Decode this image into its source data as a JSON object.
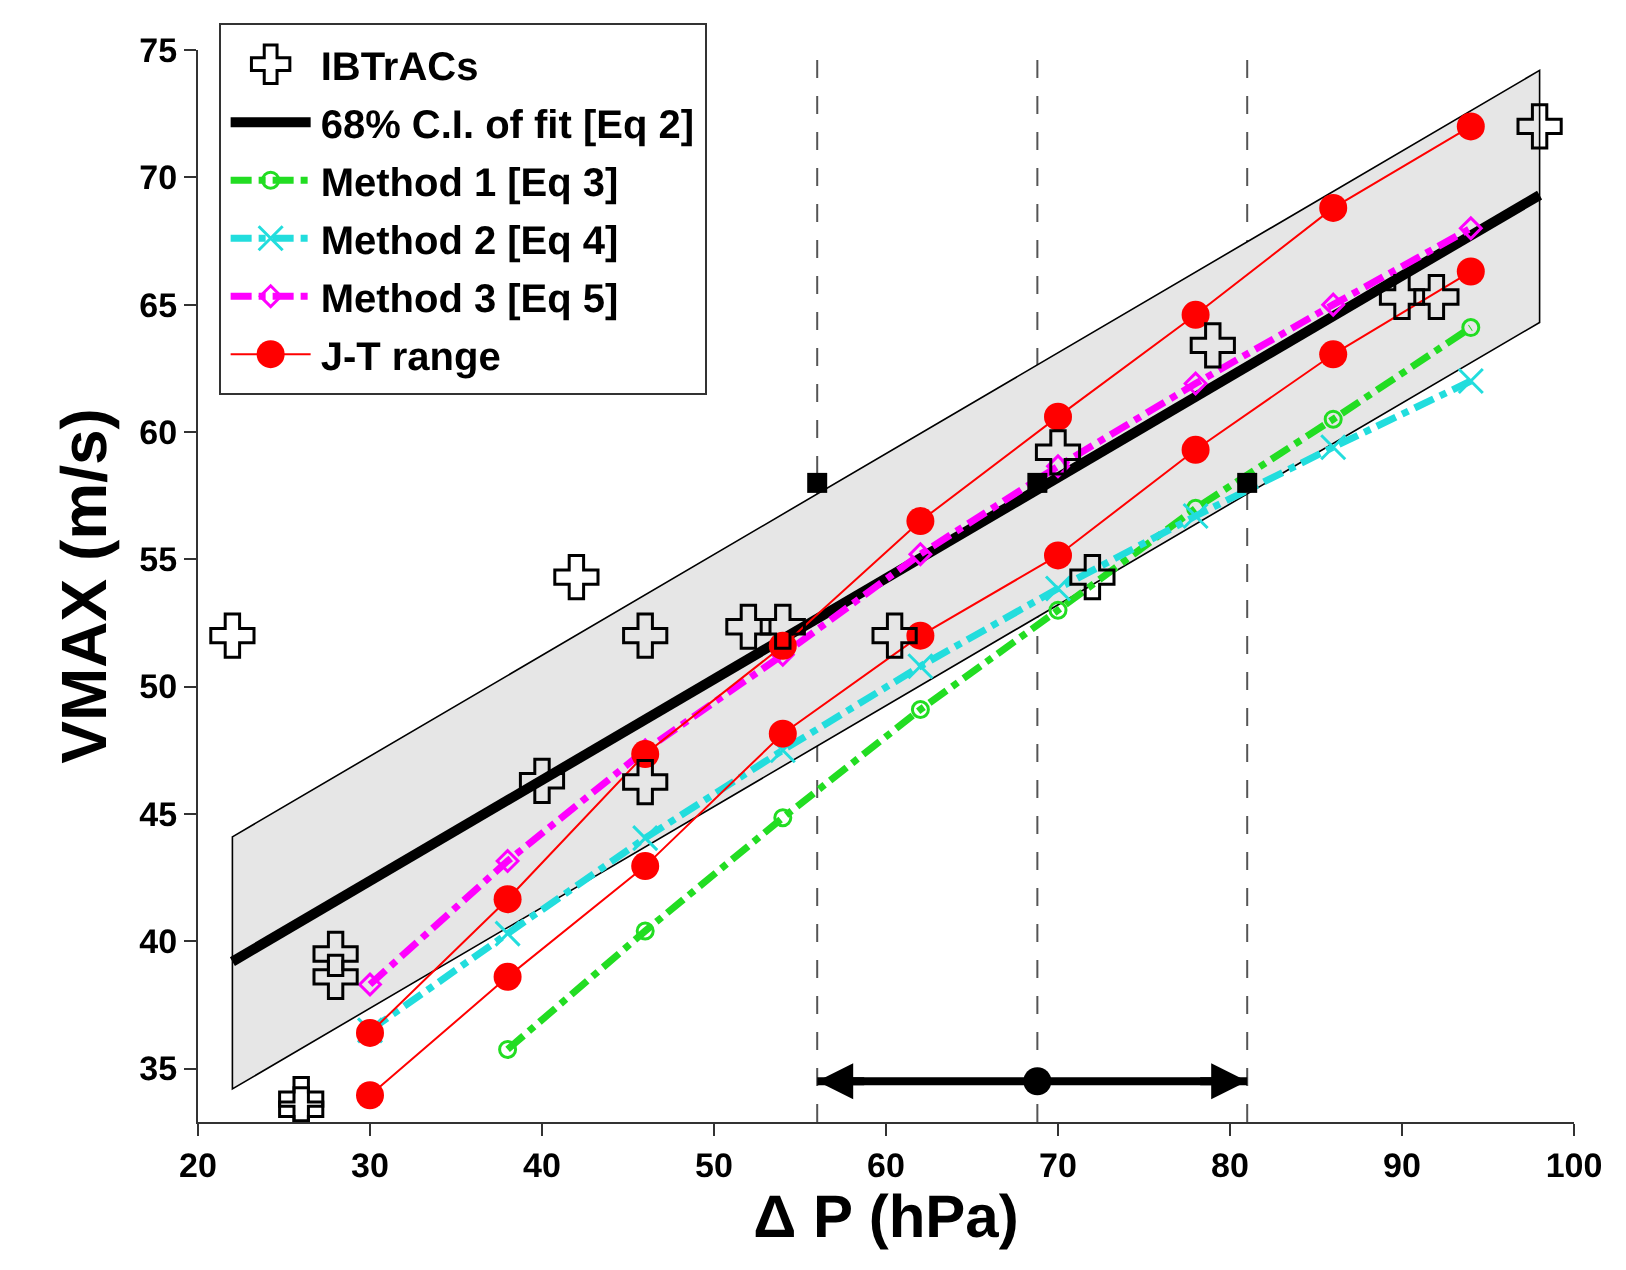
{
  "chart_data": {
    "type": "scatter",
    "xlabel": "Δ P (hPa)",
    "ylabel": "VMAX (m/s)",
    "xlim": [
      20,
      100
    ],
    "xticks": [
      20,
      30,
      40,
      50,
      60,
      70,
      80,
      90,
      100
    ],
    "ylim": [
      32.9,
      75
    ],
    "yticks": [
      35,
      40,
      45,
      50,
      55,
      60,
      65,
      70,
      75
    ],
    "grid": false,
    "legend": "top left",
    "ref_lines": [
      {
        "axis": "x",
        "value": 56,
        "color": "#555555",
        "line_style": "dashed"
      },
      {
        "axis": "x",
        "value": 68.8,
        "color": "#555555",
        "line_style": "dashed"
      },
      {
        "axis": "x",
        "value": 81,
        "color": "#555555",
        "line_style": "dashed"
      }
    ],
    "series": [
      {
        "type": "line",
        "name": "68% C.I. of fit [Eq 2]",
        "color": "#000000",
        "x": [
          22,
          98
        ],
        "values": [
          39.2,
          69.3
        ],
        "lower": [
          34.2,
          64.3
        ],
        "upper": [
          44.1,
          74.2
        ],
        "marker": "none",
        "line_style": "solid"
      },
      {
        "type": "line",
        "name": "Method 1 [Eq 3]",
        "color": "#22dd22",
        "x": [
          38,
          46,
          54,
          62,
          70,
          78,
          86,
          94
        ],
        "values": [
          35.75,
          40.4,
          44.85,
          49.1,
          53.0,
          57.0,
          60.5,
          64.1
        ],
        "marker": "circle",
        "line_style": "dashdot"
      },
      {
        "type": "line",
        "name": "Method 2 [Eq 4]",
        "color": "#22dddd",
        "x": [
          30,
          38,
          46,
          54,
          62,
          70,
          78,
          86,
          94
        ],
        "values": [
          36.5,
          40.3,
          44.05,
          47.5,
          50.8,
          53.85,
          56.7,
          59.4,
          62.0
        ],
        "marker": "x",
        "line_style": "dashdot"
      },
      {
        "type": "line",
        "name": "Method 3 [Eq 5]",
        "color": "#ff00ff",
        "x": [
          30,
          38,
          46,
          54,
          62,
          70,
          78,
          86,
          94
        ],
        "values": [
          38.3,
          43.15,
          47.5,
          51.25,
          55.2,
          58.65,
          61.9,
          65.0,
          68.0
        ],
        "marker": "diamond",
        "line_style": "dashdot"
      },
      {
        "type": "line",
        "name": "J-T range",
        "color": "#ff0000",
        "x": [
          30,
          38,
          46,
          54,
          62,
          70,
          78,
          86,
          94
        ],
        "values": [
          36.4,
          41.65,
          47.35,
          51.6,
          56.5,
          60.6,
          64.6,
          68.8,
          72.0
        ],
        "marker": "circle",
        "line_style": "solid"
      },
      {
        "type": "line",
        "color": "#ff0000",
        "x": [
          30,
          38,
          46,
          54,
          62,
          70,
          78,
          86,
          94
        ],
        "values": [
          33.95,
          38.6,
          42.95,
          48.15,
          52.0,
          55.15,
          59.3,
          63.05,
          66.3
        ],
        "marker": "circle",
        "line_style": "solid"
      },
      {
        "type": "scatter",
        "name": "IBTrACs",
        "color": "#000000",
        "x": [
          22,
          26,
          26,
          28,
          28,
          40,
          42,
          46,
          46,
          52,
          54,
          60.5,
          70,
          72,
          79,
          90,
          92,
          98
        ],
        "values": [
          52.0,
          33.8,
          33.4,
          39.5,
          38.6,
          46.3,
          54.3,
          52.0,
          46.25,
          52.35,
          52.35,
          52.0,
          59.2,
          54.3,
          63.4,
          65.3,
          65.3,
          72.0
        ],
        "marker": "cross"
      },
      {
        "type": "scatter",
        "color": "#000000",
        "x": [
          56,
          68.8,
          81
        ],
        "values": [
          58,
          58,
          58
        ],
        "marker": "square"
      },
      {
        "type": "scatter",
        "color": "#000000",
        "x": [
          68.8
        ],
        "values": [
          34.5
        ],
        "xerrors": [
          [
            56,
            81
          ]
        ],
        "marker": "circle"
      }
    ]
  }
}
